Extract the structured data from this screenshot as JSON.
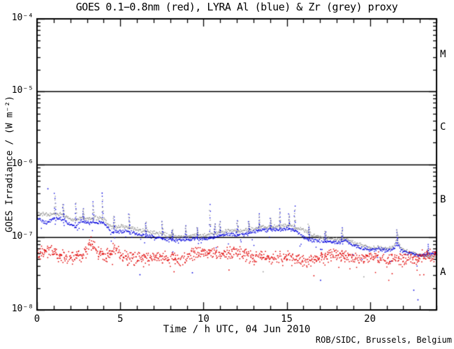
{
  "credit": "ROB/SIDC, Brussels, Belgium",
  "chart_data": {
    "type": "scatter",
    "title": "GOES 0.1−0.8nm (red), LYRA Al (blue) & Zr (grey) proxy",
    "xlabel": "Time / h UTC, 04 Jun 2010",
    "ylabel": "GOES Irradiance / (W m⁻²)",
    "xlim": [
      0,
      24
    ],
    "ylim": [
      1e-08,
      0.0001
    ],
    "x_major_ticks": [
      0,
      5,
      10,
      15,
      20
    ],
    "x_tick_labels": [
      "0",
      "5",
      "10",
      "15",
      "20"
    ],
    "x_minor_step": 1,
    "y_major_ticks": [
      0.0001,
      1e-05,
      1e-06,
      1e-07,
      1e-08
    ],
    "y_tick_labels": [
      "10⁻⁴",
      "10⁻⁵",
      "10⁻⁶",
      "10⁻⁷",
      "10⁻⁸"
    ],
    "grid": false,
    "hlines": [
      1e-05,
      1e-06,
      1e-07
    ],
    "flare_classes": [
      {
        "label": "M",
        "center_flux": 3.2e-05
      },
      {
        "label": "C",
        "center_flux": 3.2e-06
      },
      {
        "label": "B",
        "center_flux": 3.2e-07
      },
      {
        "label": "A",
        "center_flux": 3.2e-08
      }
    ],
    "series": [
      {
        "name": "LYRA Zr proxy",
        "legend_hint": "grey",
        "color": "#999999",
        "style": "dotted-line",
        "hours": [
          0,
          0.5,
          1,
          1.5,
          2,
          2.3,
          2.6,
          3,
          3.5,
          4,
          4.3,
          4.6,
          5,
          5.5,
          6,
          6.5,
          7,
          7.5,
          8,
          8.5,
          9,
          9.5,
          10,
          10.5,
          11,
          11.5,
          12,
          12.5,
          13,
          13.5,
          14,
          14.5,
          15,
          15.5,
          16,
          16.5,
          17,
          17.5,
          18,
          18.5,
          19,
          19.5,
          20,
          20.5,
          21,
          21.4,
          21.6,
          21.8,
          22,
          22.5,
          23,
          23.5,
          24
        ],
        "values": [
          2.15e-07,
          2.05e-07,
          2.1e-07,
          2.05e-07,
          1.8e-07,
          1.75e-07,
          1.85e-07,
          1.8e-07,
          1.85e-07,
          1.8e-07,
          1.45e-07,
          1.4e-07,
          1.42e-07,
          1.38e-07,
          1.28e-07,
          1.22e-07,
          1.18e-07,
          1.12e-07,
          1.05e-07,
          1.02e-07,
          1.05e-07,
          1.08e-07,
          1.05e-07,
          1.12e-07,
          1.2e-07,
          1.25e-07,
          1.22e-07,
          1.25e-07,
          1.3e-07,
          1.45e-07,
          1.4e-07,
          1.42e-07,
          1.48e-07,
          1.35e-07,
          1.28e-07,
          1.1e-07,
          1e-07,
          9.7e-08,
          9.5e-08,
          9.5e-08,
          8.5e-08,
          7.8e-08,
          7.2e-08,
          7.3e-08,
          7e-08,
          7.5e-08,
          9.5e-08,
          7.2e-08,
          6.8e-08,
          6.2e-08,
          5.8e-08,
          5.5e-08,
          5.6e-08
        ]
      },
      {
        "name": "LYRA Al proxy",
        "legend_hint": "blue",
        "color": "#0000dd",
        "style": "dotted-line",
        "hours": [
          0,
          0.5,
          1,
          1.5,
          2,
          2.3,
          2.6,
          3,
          3.5,
          4,
          4.3,
          4.6,
          5,
          5.5,
          6,
          6.5,
          7,
          7.5,
          8,
          8.5,
          9,
          9.5,
          10,
          10.5,
          11,
          11.5,
          12,
          12.5,
          13,
          13.5,
          14,
          14.5,
          15,
          15.5,
          16,
          16.5,
          17,
          17.5,
          18,
          18.5,
          19,
          19.5,
          20,
          20.5,
          21,
          21.4,
          21.6,
          21.8,
          22,
          22.5,
          23,
          23.5,
          24
        ],
        "values": [
          1.85e-07,
          1.6e-07,
          1.85e-07,
          1.8e-07,
          1.5e-07,
          1.38e-07,
          1.7e-07,
          1.6e-07,
          1.65e-07,
          1.6e-07,
          1.25e-07,
          1.2e-07,
          1.25e-07,
          1.2e-07,
          1.12e-07,
          1.05e-07,
          1e-07,
          9.8e-08,
          9.3e-08,
          9e-08,
          9.5e-08,
          9.7e-08,
          9.5e-08,
          1e-07,
          1.08e-07,
          1.12e-07,
          1.1e-07,
          1.12e-07,
          1.18e-07,
          1.3e-07,
          1.27e-07,
          1.3e-07,
          1.35e-07,
          1.22e-07,
          1e-07,
          9.2e-08,
          9e-08,
          8.8e-08,
          8.5e-08,
          9e-08,
          7.8e-08,
          7.2e-08,
          6.8e-08,
          6.9e-08,
          6.6e-08,
          7e-08,
          8.5e-08,
          6.8e-08,
          6.5e-08,
          6e-08,
          5.7e-08,
          6e-08,
          6.3e-08
        ]
      },
      {
        "name": "GOES 0.1-0.8nm",
        "legend_hint": "red",
        "color": "#e00000",
        "style": "scatter",
        "hours": [
          0,
          0.5,
          1,
          1.5,
          2,
          2.5,
          3,
          3.2,
          3.4,
          3.7,
          4,
          4.4,
          4.6,
          4.9,
          5.5,
          6,
          6.5,
          7,
          7.5,
          8,
          8.5,
          9,
          9.5,
          10,
          10.5,
          11,
          11.5,
          12,
          12.5,
          13,
          13.5,
          14,
          14.5,
          15,
          15.5,
          16,
          16.5,
          17,
          17.5,
          18,
          18.5,
          19,
          19.5,
          20,
          20.5,
          21,
          21.5,
          22,
          22.5,
          23,
          23.5,
          24
        ],
        "values": [
          5.8e-08,
          6.6e-08,
          5.8e-08,
          5.4e-08,
          5.3e-08,
          5.6e-08,
          6.8e-08,
          8.8e-08,
          7.8e-08,
          6.2e-08,
          5.5e-08,
          6.2e-08,
          7.2e-08,
          5.8e-08,
          5.3e-08,
          5.4e-08,
          5.1e-08,
          5.3e-08,
          5.5e-08,
          5e-08,
          5.2e-08,
          5.5e-08,
          6e-08,
          6.4e-08,
          6.2e-08,
          5.7e-08,
          6.1e-08,
          6.3e-08,
          5.8e-08,
          5.3e-08,
          5.5e-08,
          5.1e-08,
          5.3e-08,
          5.4e-08,
          5e-08,
          4.8e-08,
          5e-08,
          5.3e-08,
          5.7e-08,
          5.9e-08,
          5.6e-08,
          5.2e-08,
          5e-08,
          5.3e-08,
          5.1e-08,
          5e-08,
          5.3e-08,
          5.1e-08,
          5e-08,
          5.2e-08,
          5.6e-08,
          5.9e-08
        ]
      }
    ],
    "proxy_spikes": {
      "hours": [
        1.05,
        1.55,
        2.3,
        2.75,
        3.35,
        3.9,
        4.6,
        5.5,
        6.5,
        7.5,
        8.1,
        8.9,
        9.6,
        10.35,
        10.65,
        10.95,
        12.0,
        12.7,
        13.3,
        14.0,
        14.55,
        15.1,
        15.45,
        16.3,
        17.3,
        18.3,
        21.6,
        23.45
      ],
      "peak_factors": [
        2.2,
        1.6,
        2.1,
        1.5,
        1.9,
        2.3,
        1.6,
        1.75,
        1.5,
        1.7,
        1.35,
        1.55,
        1.4,
        2.9,
        1.5,
        1.55,
        1.55,
        1.45,
        1.7,
        1.45,
        1.9,
        1.6,
        2.2,
        1.45,
        1.35,
        1.55,
        1.5,
        1.35
      ]
    },
    "outlier_points": [
      {
        "series": "LYRA Al proxy",
        "hour": 0.62,
        "value": 4.7e-07
      },
      {
        "series": "LYRA Al proxy",
        "hour": 3.88,
        "value": 4.1e-07
      },
      {
        "series": "LYRA Al proxy",
        "hour": 6.15,
        "value": 3.1e-08
      },
      {
        "series": "LYRA Al proxy",
        "hour": 9.3,
        "value": 3.3e-08
      },
      {
        "series": "LYRA Al proxy",
        "hour": 17.0,
        "value": 2.6e-08
      },
      {
        "series": "LYRA Al proxy",
        "hour": 22.6,
        "value": 1.9e-08
      },
      {
        "series": "LYRA Al proxy",
        "hour": 22.85,
        "value": 1.4e-08
      },
      {
        "series": "LYRA Zr proxy",
        "hour": 13.55,
        "value": 3.4e-08
      },
      {
        "series": "LYRA Zr proxy",
        "hour": 19.6,
        "value": 2.9e-08
      },
      {
        "series": "GOES 0.1-0.8nm",
        "hour": 8.2,
        "value": 3.4e-08
      },
      {
        "series": "GOES 0.1-0.8nm",
        "hour": 11.5,
        "value": 3.6e-08
      },
      {
        "series": "GOES 0.1-0.8nm",
        "hour": 16.6,
        "value": 3e-08
      },
      {
        "series": "GOES 0.1-0.8nm",
        "hour": 21.3,
        "value": 3.2e-08
      },
      {
        "series": "GOES 0.1-0.8nm",
        "hour": 23.2,
        "value": 3.1e-08
      }
    ],
    "credit": "ROB/SIDC, Brussels, Belgium"
  }
}
